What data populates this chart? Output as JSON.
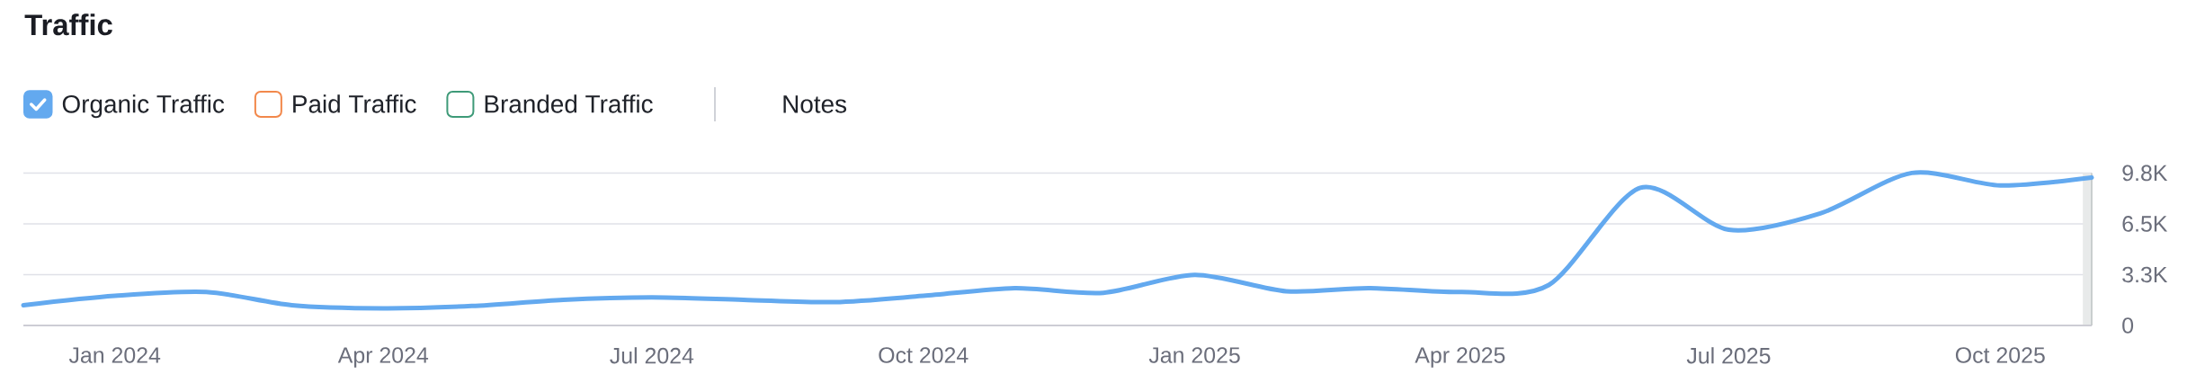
{
  "chart_data": {
    "type": "line",
    "title": "Traffic",
    "x": [
      "2023-12",
      "2024-01",
      "2024-02",
      "2024-03",
      "2024-04",
      "2024-05",
      "2024-06",
      "2024-07",
      "2024-08",
      "2024-09",
      "2024-10",
      "2024-11",
      "2024-12",
      "2025-01",
      "2025-02",
      "2025-03",
      "2025-04",
      "2025-05",
      "2025-06",
      "2025-07",
      "2025-08",
      "2025-09",
      "2025-10",
      "2025-11"
    ],
    "series": [
      {
        "name": "Organic Traffic",
        "color": "#63a9ef",
        "values": [
          1300,
          1900,
          2150,
          1300,
          1100,
          1250,
          1650,
          1800,
          1650,
          1500,
          1900,
          2400,
          2100,
          3250,
          2200,
          2400,
          2150,
          2600,
          8850,
          6150,
          7200,
          9800,
          9000,
          9500
        ]
      },
      {
        "name": "Paid Traffic",
        "color": "#f2884b",
        "values": [
          null,
          null,
          null,
          null,
          null,
          null,
          null,
          null,
          null,
          null,
          null,
          null,
          null,
          null,
          null,
          null,
          null,
          null,
          null,
          null,
          null,
          null,
          null,
          null
        ]
      },
      {
        "name": "Branded Traffic",
        "color": "#3e9a78",
        "values": [
          null,
          null,
          null,
          null,
          null,
          null,
          null,
          null,
          null,
          null,
          null,
          null,
          null,
          null,
          null,
          null,
          null,
          null,
          null,
          null,
          null,
          null,
          null,
          null
        ]
      }
    ],
    "xlim": [
      "2023-12",
      "2025-11"
    ],
    "xticks": [
      {
        "value": "2024-01",
        "label": "Jan 2024"
      },
      {
        "value": "2024-04",
        "label": "Apr 2024"
      },
      {
        "value": "2024-07",
        "label": "Jul 2024"
      },
      {
        "value": "2024-10",
        "label": "Oct 2024"
      },
      {
        "value": "2025-01",
        "label": "Jan 2025"
      },
      {
        "value": "2025-04",
        "label": "Apr 2025"
      },
      {
        "value": "2025-07",
        "label": "Jul 2025"
      },
      {
        "value": "2025-10",
        "label": "Oct 2025"
      }
    ],
    "ylim": [
      0,
      9800
    ],
    "yticks": [
      0,
      {
        "value": 3267,
        "label": "3.3K"
      },
      {
        "value": 6533,
        "label": "6.5K"
      },
      {
        "value": 9800,
        "label": "9.8K"
      }
    ],
    "grid": "y",
    "legend": "top left",
    "bands": [
      {
        "axis": "x",
        "from": "2025-10-29",
        "to": "2025-11-01",
        "color": "#e8eaea"
      }
    ],
    "annotations": [
      "Notes"
    ]
  }
}
